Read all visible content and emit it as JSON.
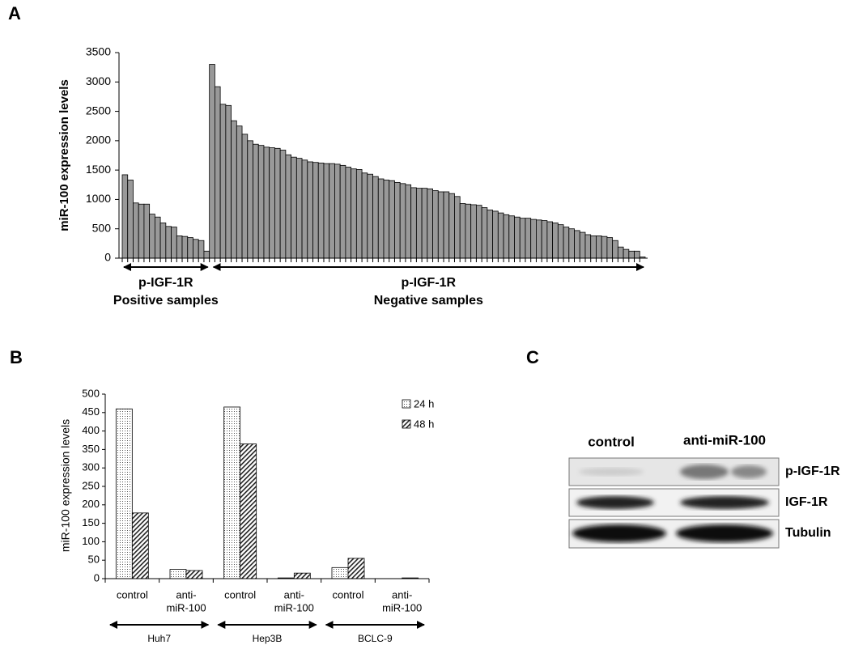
{
  "chart_data": [
    {
      "type": "bar",
      "label": "A",
      "ylabel": "miR-100 expression levels",
      "values": [
        1420,
        1330,
        940,
        920,
        920,
        750,
        700,
        600,
        540,
        530,
        380,
        370,
        350,
        320,
        300,
        120,
        3300,
        2920,
        2620,
        2600,
        2340,
        2250,
        2110,
        2000,
        1940,
        1920,
        1890,
        1880,
        1870,
        1840,
        1760,
        1720,
        1700,
        1670,
        1640,
        1630,
        1620,
        1610,
        1610,
        1600,
        1580,
        1550,
        1520,
        1510,
        1450,
        1430,
        1390,
        1350,
        1330,
        1320,
        1290,
        1270,
        1250,
        1200,
        1190,
        1190,
        1180,
        1150,
        1130,
        1130,
        1100,
        1050,
        930,
        920,
        910,
        900,
        860,
        820,
        800,
        770,
        740,
        720,
        700,
        680,
        680,
        660,
        650,
        640,
        620,
        600,
        570,
        530,
        500,
        470,
        440,
        400,
        380,
        380,
        370,
        350,
        300,
        190,
        150,
        120,
        120,
        20
      ],
      "color": "#999999",
      "ylim": [
        0,
        3500
      ],
      "yticks": [
        0,
        500,
        1000,
        1500,
        2000,
        2500,
        3000,
        3500
      ],
      "groups": [
        {
          "lines": [
            "p-IGF-1R",
            "Positive samples"
          ]
        },
        {
          "lines": [
            "p-IGF-1R",
            "Negative samples"
          ]
        }
      ]
    },
    {
      "type": "grouped-bar",
      "label": "B",
      "ylabel": "miR-100 expression levels",
      "categories": [
        [
          "control"
        ],
        [
          "anti-",
          "miR-100"
        ],
        [
          "control"
        ],
        [
          "anti-",
          "miR-100"
        ],
        [
          "control"
        ],
        [
          "anti-",
          "miR-100"
        ]
      ],
      "groups": [
        "Huh7",
        "Hep3B",
        "BCLC-9"
      ],
      "series": [
        {
          "name": "24 h",
          "pattern": "dots",
          "values": [
            460,
            25,
            465,
            2,
            30,
            0
          ]
        },
        {
          "name": "48 h",
          "pattern": "hatch",
          "values": [
            178,
            22,
            365,
            15,
            55,
            2
          ]
        }
      ],
      "ylim": [
        0,
        500
      ],
      "yticks": [
        0,
        50,
        100,
        150,
        200,
        250,
        300,
        350,
        400,
        450,
        500
      ],
      "legend": "upper right"
    }
  ],
  "blot": {
    "label": "C",
    "columns": [
      "control",
      "anti-miR-100"
    ],
    "rows": [
      "p-IGF-1R",
      "IGF-1R",
      "Tubulin"
    ]
  }
}
